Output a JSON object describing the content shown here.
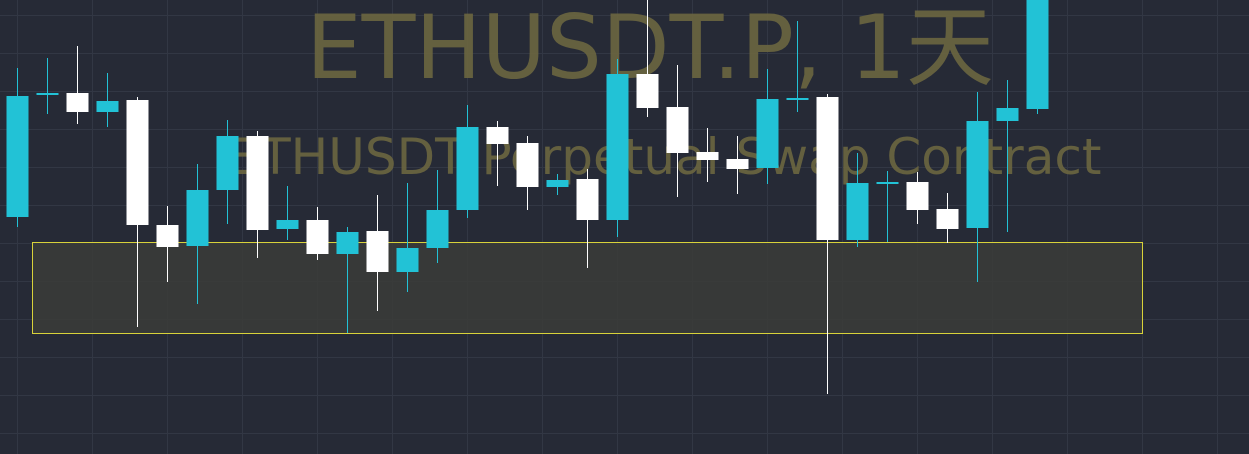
{
  "chart_data": {
    "type": "candlestick",
    "watermark": {
      "title": "ETHUSDT.P, 1天",
      "subtitle": "ETHUSDT Perpetual Swap Contract"
    },
    "price_range": [
      0,
      454
    ],
    "zone_box": {
      "from_index": 1,
      "to_index": 37,
      "low": 121,
      "high": 212
    },
    "colors": {
      "background": "#262a36",
      "grid": "#323744",
      "up": "#22c2d6",
      "down": "#ffffff",
      "zone_fill": "#3b3c38",
      "zone_stroke": "#d8d23a",
      "watermark": "#6b6640"
    },
    "candles": [
      {
        "o": 237,
        "h": 386,
        "l": 227,
        "c": 358
      },
      {
        "o": 359,
        "h": 396,
        "l": 340,
        "c": 361
      },
      {
        "o": 361,
        "h": 408,
        "l": 330,
        "c": 342
      },
      {
        "o": 342,
        "h": 381,
        "l": 327,
        "c": 353
      },
      {
        "o": 354,
        "h": 357,
        "l": 127,
        "c": 229
      },
      {
        "o": 229,
        "h": 248,
        "l": 172,
        "c": 207
      },
      {
        "o": 208,
        "h": 290,
        "l": 150,
        "c": 264
      },
      {
        "o": 264,
        "h": 334,
        "l": 230,
        "c": 318
      },
      {
        "o": 318,
        "h": 323,
        "l": 196,
        "c": 224
      },
      {
        "o": 225,
        "h": 268,
        "l": 214,
        "c": 234
      },
      {
        "o": 234,
        "h": 247,
        "l": 194,
        "c": 200
      },
      {
        "o": 200,
        "h": 227,
        "l": 121,
        "c": 222
      },
      {
        "o": 223,
        "h": 259,
        "l": 143,
        "c": 182
      },
      {
        "o": 182,
        "h": 271,
        "l": 162,
        "c": 206
      },
      {
        "o": 206,
        "h": 284,
        "l": 191,
        "c": 244
      },
      {
        "o": 244,
        "h": 349,
        "l": 236,
        "c": 327
      },
      {
        "o": 327,
        "h": 333,
        "l": 268,
        "c": 310
      },
      {
        "o": 311,
        "h": 318,
        "l": 244,
        "c": 267
      },
      {
        "o": 267,
        "h": 280,
        "l": 259,
        "c": 274
      },
      {
        "o": 275,
        "h": 285,
        "l": 186,
        "c": 234
      },
      {
        "o": 234,
        "h": 395,
        "l": 217,
        "c": 380
      },
      {
        "o": 380,
        "h": 454,
        "l": 337,
        "c": 346
      },
      {
        "o": 347,
        "h": 389,
        "l": 257,
        "c": 301
      },
      {
        "o": 302,
        "h": 326,
        "l": 272,
        "c": 294
      },
      {
        "o": 295,
        "h": 318,
        "l": 260,
        "c": 285
      },
      {
        "o": 286,
        "h": 385,
        "l": 270,
        "c": 355
      },
      {
        "o": 355,
        "h": 433,
        "l": 342,
        "c": 356
      },
      {
        "o": 357,
        "h": 360,
        "l": 60,
        "c": 214
      },
      {
        "o": 214,
        "h": 301,
        "l": 207,
        "c": 271
      },
      {
        "o": 272,
        "h": 283,
        "l": 212,
        "c": 272
      },
      {
        "o": 272,
        "h": 282,
        "l": 230,
        "c": 244
      },
      {
        "o": 245,
        "h": 261,
        "l": 211,
        "c": 225
      },
      {
        "o": 226,
        "h": 362,
        "l": 172,
        "c": 333
      },
      {
        "o": 333,
        "h": 374,
        "l": 222,
        "c": 346
      },
      {
        "o": 345,
        "h": 454,
        "l": 340,
        "c": 454
      }
    ]
  }
}
